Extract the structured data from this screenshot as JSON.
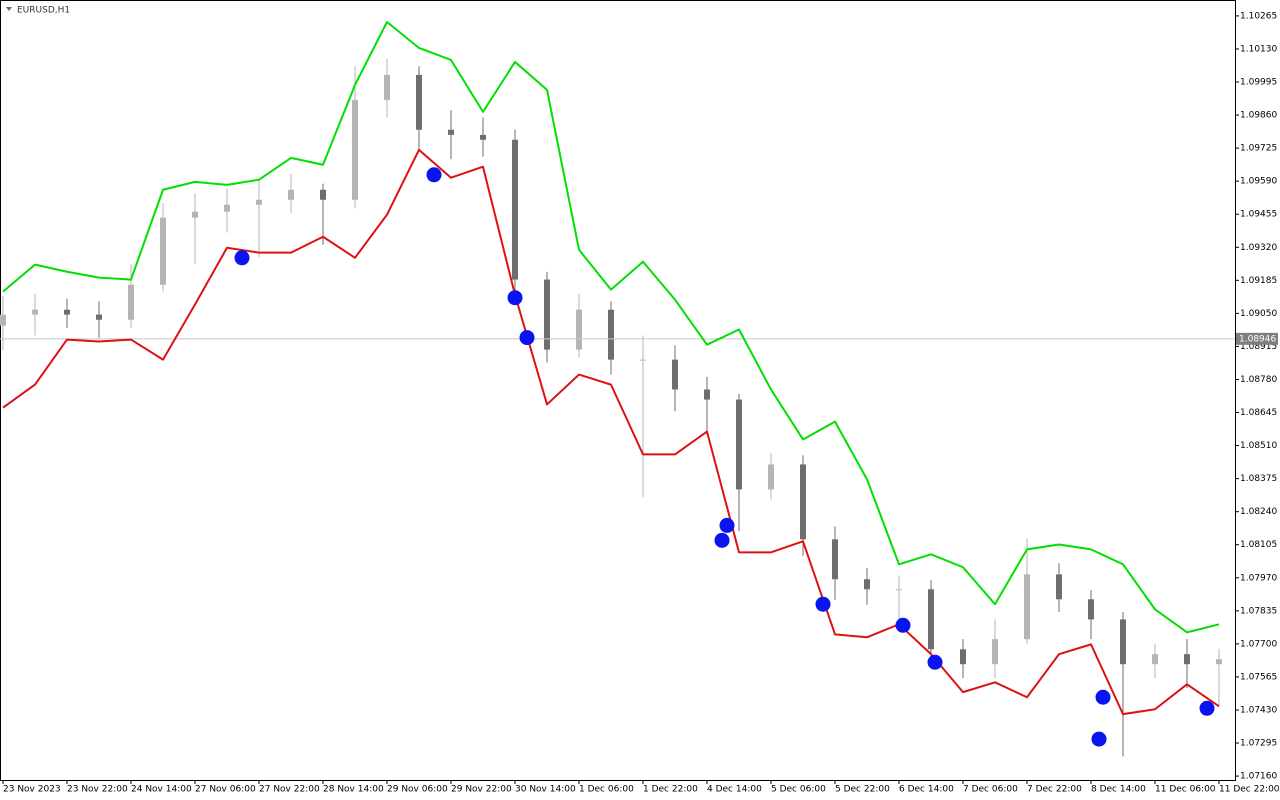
{
  "chart_data": {
    "type": "candlestick",
    "title": "EURUSD,H1",
    "x": [
      0,
      8,
      16,
      24,
      32,
      40,
      48,
      56,
      64,
      72,
      80,
      88,
      96,
      104,
      112,
      120,
      128,
      136,
      144,
      152,
      160,
      168,
      176,
      184,
      192,
      200,
      208,
      216,
      224,
      232,
      240,
      248,
      256,
      264,
      272,
      280,
      288,
      296,
      304
    ],
    "open": [
      1.09,
      1.09045,
      1.09065,
      1.09045,
      1.09024,
      1.09167,
      1.09441,
      1.09465,
      1.09494,
      1.09514,
      1.09555,
      1.09514,
      1.09922,
      1.10024,
      1.098,
      1.09779,
      1.09759,
      1.09188,
      1.08902,
      1.09065,
      1.08861,
      1.08861,
      1.08739,
      1.08698,
      1.08331,
      1.08433,
      1.08127,
      1.07964,
      1.07923,
      1.07923,
      1.07678,
      1.07617,
      1.07719,
      1.07984,
      1.07882,
      1.078,
      1.07617,
      1.07658,
      1.07617
    ],
    "high": [
      1.0912,
      1.0913,
      1.0911,
      1.091,
      1.0925,
      1.095,
      1.0954,
      1.0956,
      1.096,
      1.0962,
      1.0958,
      1.1006,
      1.1009,
      1.1006,
      1.0988,
      1.0985,
      1.098,
      1.0922,
      1.0913,
      1.091,
      1.0896,
      1.0892,
      1.0879,
      1.0872,
      1.0848,
      1.0847,
      1.0818,
      1.0801,
      1.0798,
      1.0796,
      1.0772,
      1.078,
      1.0813,
      1.0803,
      1.0792,
      1.0783,
      1.077,
      1.0772,
      1.0768
    ],
    "low": [
      1.089,
      1.0896,
      1.0899,
      1.0895,
      1.0899,
      1.0914,
      1.0925,
      1.0938,
      1.0928,
      1.0946,
      1.0933,
      1.0948,
      1.0985,
      1.0972,
      1.0968,
      1.0969,
      1.0913,
      1.0885,
      1.0887,
      1.088,
      1.083,
      1.0865,
      1.0856,
      1.0816,
      1.0829,
      1.0806,
      1.0788,
      1.0786,
      1.078,
      1.0762,
      1.0756,
      1.0756,
      1.077,
      1.0783,
      1.0772,
      1.0724,
      1.0756,
      1.0752,
      1.0745
    ],
    "close": [
      1.09045,
      1.09065,
      1.09045,
      1.09024,
      1.09167,
      1.09441,
      1.09465,
      1.09494,
      1.09514,
      1.09555,
      1.09514,
      1.09922,
      1.10024,
      1.098,
      1.09779,
      1.09759,
      1.09188,
      1.08902,
      1.09065,
      1.08861,
      1.08861,
      1.08739,
      1.08698,
      1.08331,
      1.08433,
      1.08127,
      1.07964,
      1.07923,
      1.07923,
      1.07678,
      1.07617,
      1.07719,
      1.07984,
      1.07882,
      1.078,
      1.07617,
      1.07658,
      1.07617,
      1.07637
    ],
    "bull_color": "#b4b4b4",
    "bear_color": "#6e6e6e",
    "upper_band": {
      "color": "#00e000",
      "values": [
        1.09139,
        1.09249,
        1.0922,
        1.09196,
        1.09188,
        1.09555,
        1.09587,
        1.09575,
        1.09596,
        1.09685,
        1.09657,
        1.09983,
        1.1024,
        1.10134,
        1.10085,
        1.09873,
        1.10077,
        1.09963,
        1.0931,
        1.09147,
        1.09261,
        1.09106,
        1.08922,
        1.08984,
        1.08739,
        1.08535,
        1.08608,
        1.08372,
        1.08025,
        1.08066,
        1.08013,
        1.07862,
        1.08086,
        1.08106,
        1.08086,
        1.08025,
        1.07841,
        1.07747,
        1.0778
      ]
    },
    "lower_band": {
      "color": "#dd1111",
      "values": [
        1.08665,
        1.08759,
        1.08943,
        1.08935,
        1.08943,
        1.08861,
        1.09086,
        1.09318,
        1.09298,
        1.09298,
        1.09363,
        1.09277,
        1.09453,
        1.09718,
        1.09604,
        1.09649,
        1.09126,
        1.08678,
        1.088,
        1.08759,
        1.08474,
        1.08474,
        1.08567,
        1.08074,
        1.08074,
        1.08119,
        1.07739,
        1.07727,
        1.0778,
        1.07658,
        1.07503,
        1.07543,
        1.07482,
        1.07658,
        1.07698,
        1.07413,
        1.07433,
        1.07535,
        1.07445
      ]
    },
    "signal_points": {
      "color": "#0a14f0",
      "x": [
        59.75,
        107.75,
        128,
        131,
        181,
        179.75,
        205,
        225,
        233,
        275,
        274,
        301
      ],
      "y": [
        1.09277,
        1.09616,
        1.09114,
        1.08951,
        1.08184,
        1.08123,
        1.07862,
        1.07776,
        1.07625,
        1.07482,
        1.07311,
        1.07437
      ]
    },
    "current_price": 1.08946,
    "xlim": [
      -0.75,
      308
    ],
    "ylim": [
      1.07144,
      1.1033
    ],
    "xticks": [
      {
        "value": 0,
        "label": "23 Nov 2023"
      },
      {
        "value": 16,
        "label": "23 Nov 22:00"
      },
      {
        "value": 32,
        "label": "24 Nov 14:00"
      },
      {
        "value": 48,
        "label": "27 Nov 06:00"
      },
      {
        "value": 64,
        "label": "27 Nov 22:00"
      },
      {
        "value": 80,
        "label": "28 Nov 14:00"
      },
      {
        "value": 96,
        "label": "29 Nov 06:00"
      },
      {
        "value": 112,
        "label": "29 Nov 22:00"
      },
      {
        "value": 128,
        "label": "30 Nov 14:00"
      },
      {
        "value": 144,
        "label": "1 Dec 06:00"
      },
      {
        "value": 160,
        "label": "1 Dec 22:00"
      },
      {
        "value": 176,
        "label": "4 Dec 14:00"
      },
      {
        "value": 192,
        "label": "5 Dec 06:00"
      },
      {
        "value": 208,
        "label": "5 Dec 22:00"
      },
      {
        "value": 224,
        "label": "6 Dec 14:00"
      },
      {
        "value": 240,
        "label": "7 Dec 06:00"
      },
      {
        "value": 256,
        "label": "7 Dec 22:00"
      },
      {
        "value": 272,
        "label": "8 Dec 14:00"
      },
      {
        "value": 288,
        "label": "11 Dec 06:00"
      },
      {
        "value": 304,
        "label": "11 Dec 22:00"
      }
    ],
    "yticks": [
      1.10265,
      {
        "value": 1.1013,
        "label": "1.10130"
      },
      1.09995,
      {
        "value": 1.0986,
        "label": "1.09860"
      },
      1.09725,
      {
        "value": 1.0959,
        "label": "1.09590"
      },
      1.09455,
      {
        "value": 1.0932,
        "label": "1.09320"
      },
      1.09185,
      {
        "value": 1.0905,
        "label": "1.09050"
      },
      1.08915,
      {
        "value": 1.0878,
        "label": "1.08780"
      },
      1.08645,
      {
        "value": 1.0851,
        "label": "1.08510"
      },
      1.08375,
      {
        "value": 1.0824,
        "label": "1.08240"
      },
      1.08105,
      {
        "value": 1.0797,
        "label": "1.07970"
      },
      1.07835,
      {
        "value": 1.077,
        "label": "1.07700"
      },
      1.07565,
      {
        "value": 1.0743,
        "label": "1.07430"
      },
      1.07295,
      {
        "value": 1.0716,
        "label": "1.07160"
      }
    ]
  }
}
